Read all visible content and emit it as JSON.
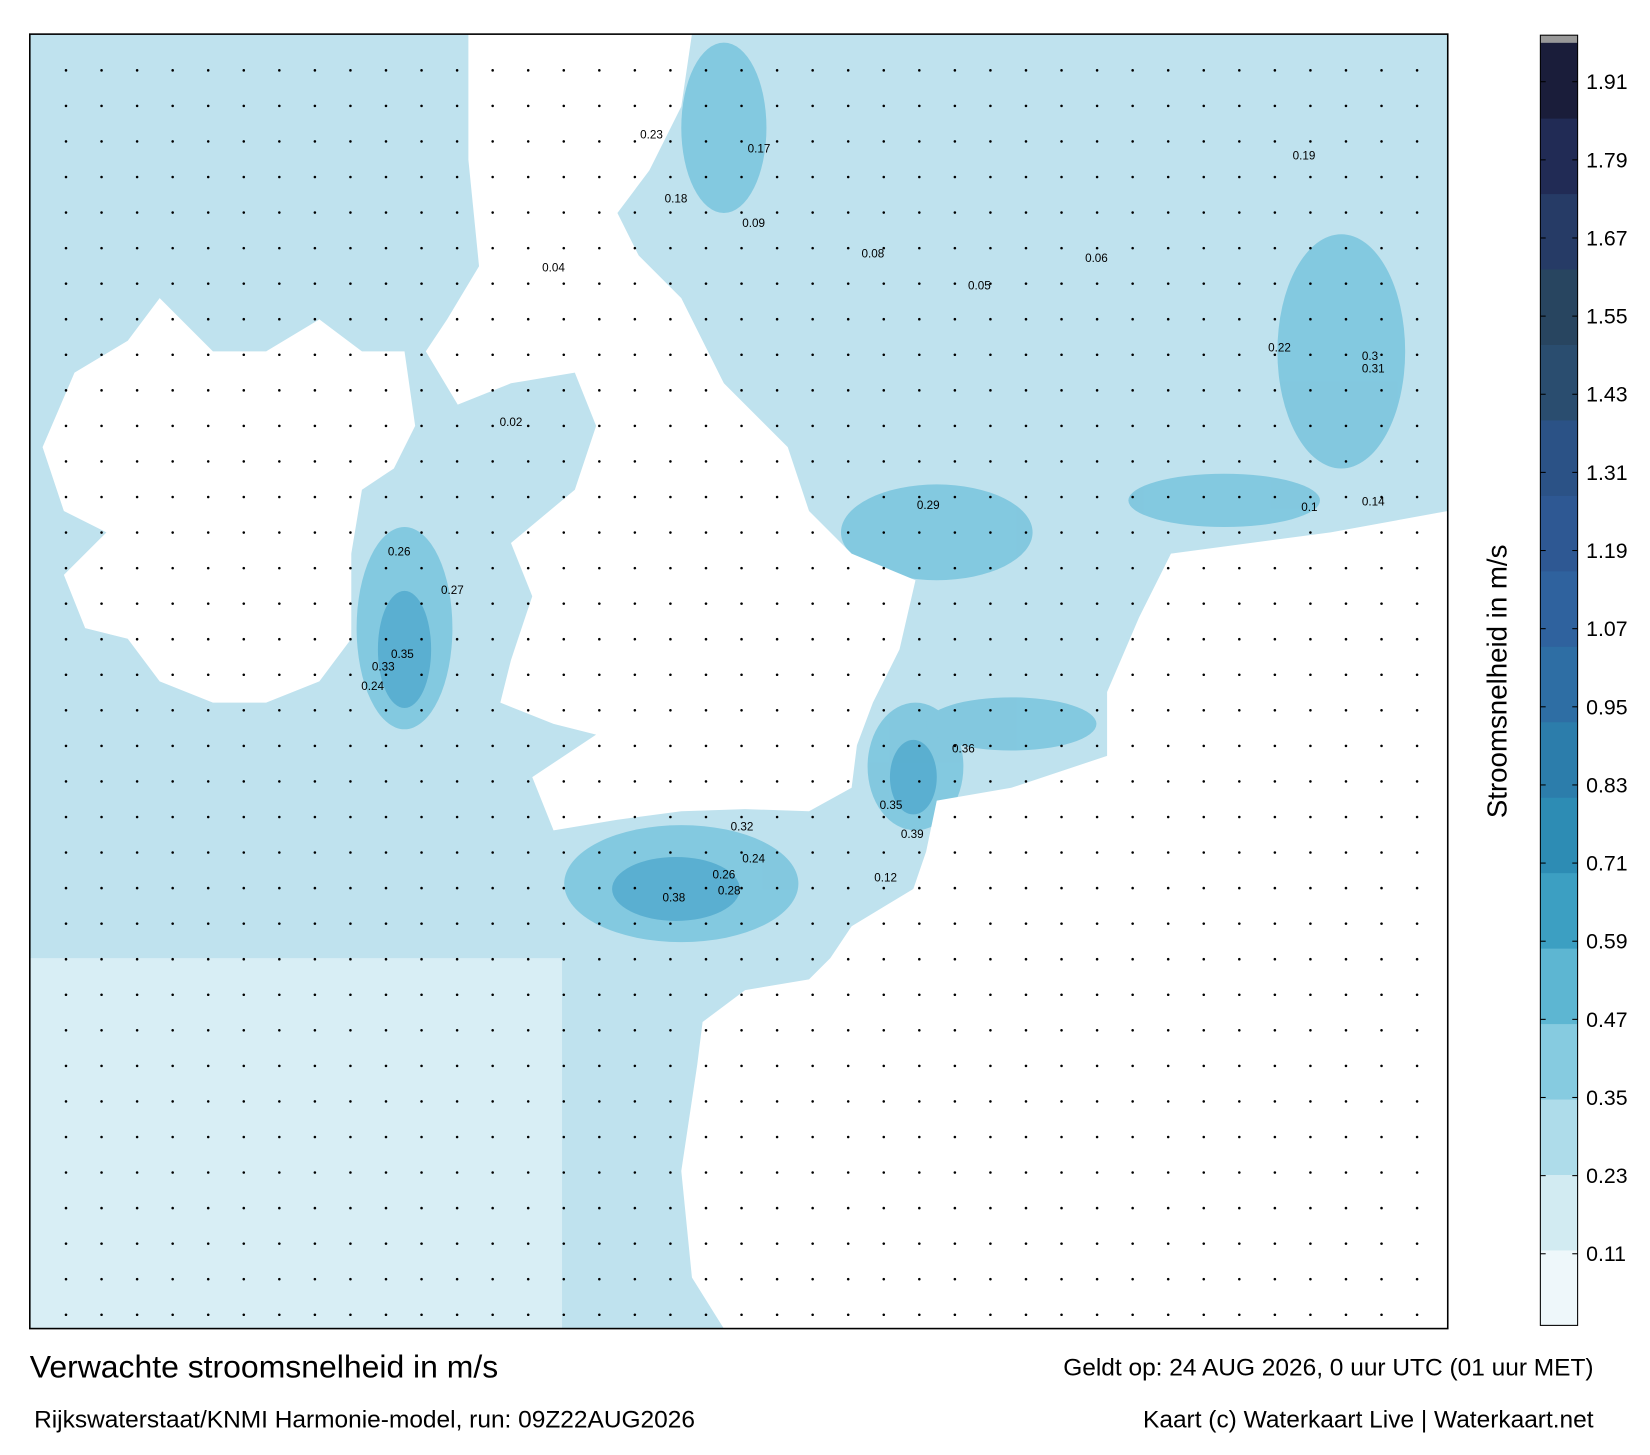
{
  "title": "Verwachte stroomsnelheid in m/s",
  "source": "Rijkswaterstaat/KNMI Harmonie-model, run: 09Z22AUG2026",
  "valid_time": "Geldt op: 24 AUG 2026, 0 uur UTC (01 uur MET)",
  "credit": "Kaart (c) Waterkaart Live | Waterkaart.net",
  "colorbar": {
    "label": "Stroomsnelheid in m/s",
    "lim": [
      0,
      1.97
    ],
    "ticks": [
      0.11,
      0.23,
      0.35,
      0.47,
      0.59,
      0.71,
      0.83,
      0.95,
      1.07,
      1.19,
      1.31,
      1.43,
      1.55,
      1.67,
      1.79,
      1.91
    ],
    "colors": [
      "#eef7fa",
      "#d2ebf2",
      "#aedcea",
      "#86cbe0",
      "#5db6d2",
      "#3c9fc2",
      "#2d8cb4",
      "#2c7dab",
      "#2e6ea4",
      "#2f629e",
      "#2e5893",
      "#2b5286",
      "#2a4d6f",
      "#284560",
      "#263b66",
      "#212b55",
      "#1a1d3a"
    ]
  },
  "map_labels": [
    "0.35",
    "0.33",
    "0.26",
    "0.27",
    "0.24",
    "0.38",
    "0.32",
    "0.24",
    "0.26",
    "0.28",
    "0.36",
    "0.39",
    "0.35",
    "0.29",
    "0.31",
    "0.3",
    "0.23",
    "0.22",
    "0.19",
    "0.18",
    "0.17",
    "0.14",
    "0.12",
    "0.1",
    "0.09",
    "0.08",
    "0.06",
    "0.05",
    "0.04",
    "0.02"
  ]
}
